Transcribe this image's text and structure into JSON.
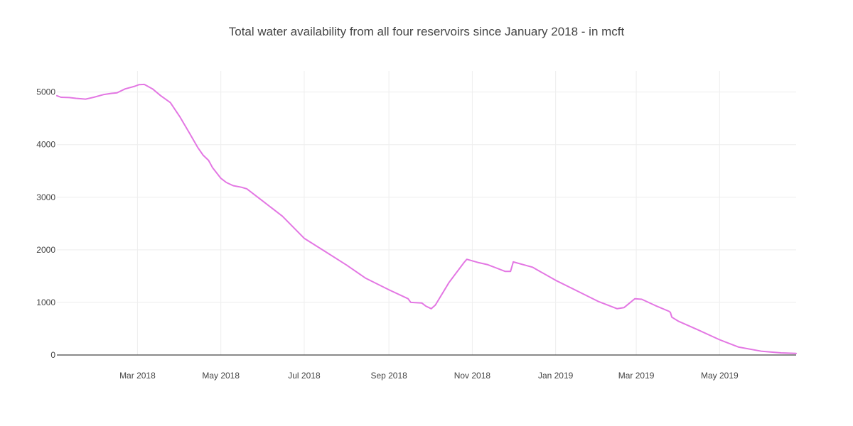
{
  "chart_data": {
    "type": "line",
    "title": "Total water availability from all four reservoirs since January 2018 - in mcft",
    "xlabel": "",
    "ylabel": "",
    "x_range": [
      "2018-01-01",
      "2019-06-26"
    ],
    "ylim": [
      0,
      5400
    ],
    "yticks": [
      0,
      1000,
      2000,
      3000,
      4000,
      5000
    ],
    "ytick_labels": [
      "0",
      "1000",
      "2000",
      "3000",
      "4000",
      "5000"
    ],
    "xticks": [
      {
        "date": "2018-03-01",
        "label": "Mar 2018"
      },
      {
        "date": "2018-05-01",
        "label": "May 2018"
      },
      {
        "date": "2018-07-01",
        "label": "Jul 2018"
      },
      {
        "date": "2018-09-01",
        "label": "Sep 2018"
      },
      {
        "date": "2018-11-01",
        "label": "Nov 2018"
      },
      {
        "date": "2019-01-01",
        "label": "Jan 2019"
      },
      {
        "date": "2019-03-01",
        "label": "Mar 2019"
      },
      {
        "date": "2019-05-01",
        "label": "May 2019"
      }
    ],
    "grid": true,
    "colors": {
      "series": "#e377e3",
      "grid": "#eeeeee",
      "zeroline": "#444444",
      "text": "#444444"
    },
    "series": [
      {
        "name": "Total water availability",
        "x": [
          "2018-01-01",
          "2018-01-04",
          "2018-01-10",
          "2018-01-15",
          "2018-01-22",
          "2018-01-28",
          "2018-02-04",
          "2018-02-10",
          "2018-02-14",
          "2018-02-20",
          "2018-02-27",
          "2018-03-02",
          "2018-03-06",
          "2018-03-12",
          "2018-03-18",
          "2018-03-25",
          "2018-04-01",
          "2018-04-08",
          "2018-04-14",
          "2018-04-18",
          "2018-04-22",
          "2018-04-25",
          "2018-05-01",
          "2018-05-05",
          "2018-05-10",
          "2018-05-16",
          "2018-05-20",
          "2018-06-01",
          "2018-06-15",
          "2018-07-01",
          "2018-07-15",
          "2018-08-01",
          "2018-08-15",
          "2018-09-01",
          "2018-09-15",
          "2018-09-17",
          "2018-09-25",
          "2018-09-28",
          "2018-10-02",
          "2018-10-05",
          "2018-10-15",
          "2018-10-26",
          "2018-10-28",
          "2018-11-05",
          "2018-11-12",
          "2018-11-15",
          "2018-11-18",
          "2018-11-25",
          "2018-11-29",
          "2018-12-01",
          "2018-12-15",
          "2019-01-01",
          "2019-01-15",
          "2019-02-01",
          "2019-02-15",
          "2019-02-20",
          "2019-02-28",
          "2019-03-05",
          "2019-03-15",
          "2019-03-25",
          "2019-03-26",
          "2019-03-27",
          "2019-04-01",
          "2019-04-15",
          "2019-05-01",
          "2019-05-15",
          "2019-06-01",
          "2019-06-15",
          "2019-06-26"
        ],
        "y": [
          4930,
          4900,
          4895,
          4880,
          4865,
          4900,
          4950,
          4975,
          4985,
          5060,
          5110,
          5140,
          5145,
          5060,
          4930,
          4800,
          4530,
          4220,
          3950,
          3800,
          3700,
          3560,
          3360,
          3280,
          3220,
          3190,
          3160,
          2920,
          2640,
          2220,
          1990,
          1710,
          1460,
          1240,
          1070,
          1000,
          990,
          930,
          880,
          950,
          1380,
          1760,
          1820,
          1760,
          1720,
          1690,
          1660,
          1590,
          1590,
          1770,
          1670,
          1420,
          1240,
          1020,
          880,
          900,
          1070,
          1060,
          940,
          830,
          810,
          720,
          640,
          480,
          290,
          150,
          70,
          40,
          30
        ]
      }
    ]
  }
}
